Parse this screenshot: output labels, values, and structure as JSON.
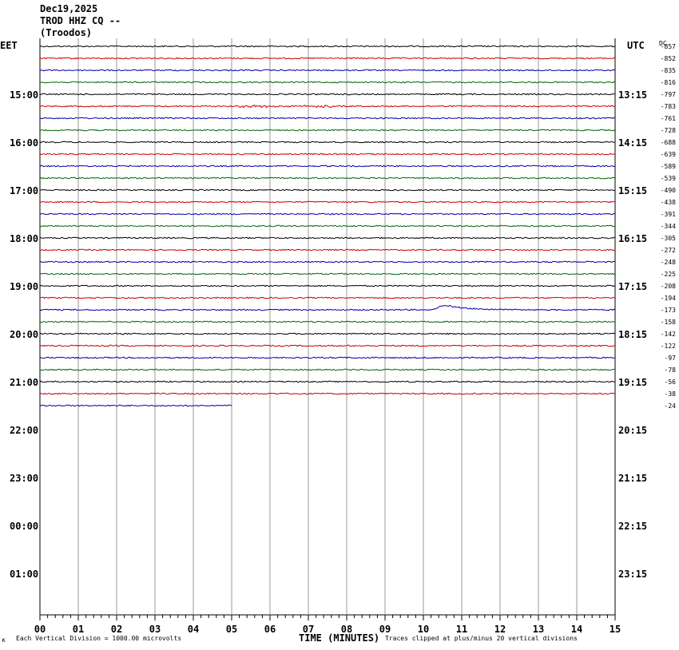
{
  "header": {
    "date": "Dec19,2025",
    "station": "TROD HHZ CQ --",
    "location": "(Troodos)"
  },
  "left_tz": "EET",
  "right_tz": "UTC",
  "dc_label": "DC",
  "footer": {
    "left_glyph": "ĸ",
    "scale_note": "Each Vertical Division = 1000.00 microvolts",
    "xaxis_title": "TIME (MINUTES)",
    "clip_note": "Traces clipped at plus/minus 20 vertical divisions"
  },
  "colors": {
    "trace_cycle": [
      "#000000",
      "#cc0000",
      "#0000aa",
      "#006600"
    ],
    "grid": "#999999"
  },
  "chart_data": {
    "type": "line",
    "title": "",
    "xlabel": "TIME (MINUTES)",
    "ylabel": "",
    "xlim": [
      0,
      15
    ],
    "x_ticks": [
      "00",
      "01",
      "02",
      "03",
      "04",
      "05",
      "06",
      "07",
      "08",
      "09",
      "10",
      "11",
      "12",
      "13",
      "14",
      "15"
    ],
    "left_hour_labels": [
      "15:00",
      "16:00",
      "17:00",
      "18:00",
      "19:00",
      "20:00",
      "21:00",
      "22:00",
      "23:00",
      "00:00",
      "01:00"
    ],
    "right_hour_labels": [
      "13:15",
      "14:15",
      "15:15",
      "16:15",
      "17:15",
      "18:15",
      "19:15",
      "20:15",
      "21:15",
      "22:15",
      "23:15"
    ],
    "trace_dc_offsets": [
      "-857",
      "-852",
      "-835",
      "-816",
      "-797",
      "-783",
      "-761",
      "-728",
      "-688",
      "-639",
      "-589",
      "-539",
      "-490",
      "-438",
      "-391",
      "-344",
      "-305",
      "-272",
      "-248",
      "-225",
      "-208",
      "-194",
      "-173",
      "-158",
      "-142",
      "-122",
      "-97",
      "-78",
      "-56",
      "-38",
      "-24"
    ],
    "last_trace_end_minute": 5,
    "events": [
      {
        "trace_index": 5,
        "start_minute": 5.2,
        "end_minute": 7.6,
        "amplitude": "small burst"
      },
      {
        "trace_index": 22,
        "start_minute": 10.2,
        "end_minute": 12.6,
        "amplitude": "long-period swell"
      }
    ]
  }
}
